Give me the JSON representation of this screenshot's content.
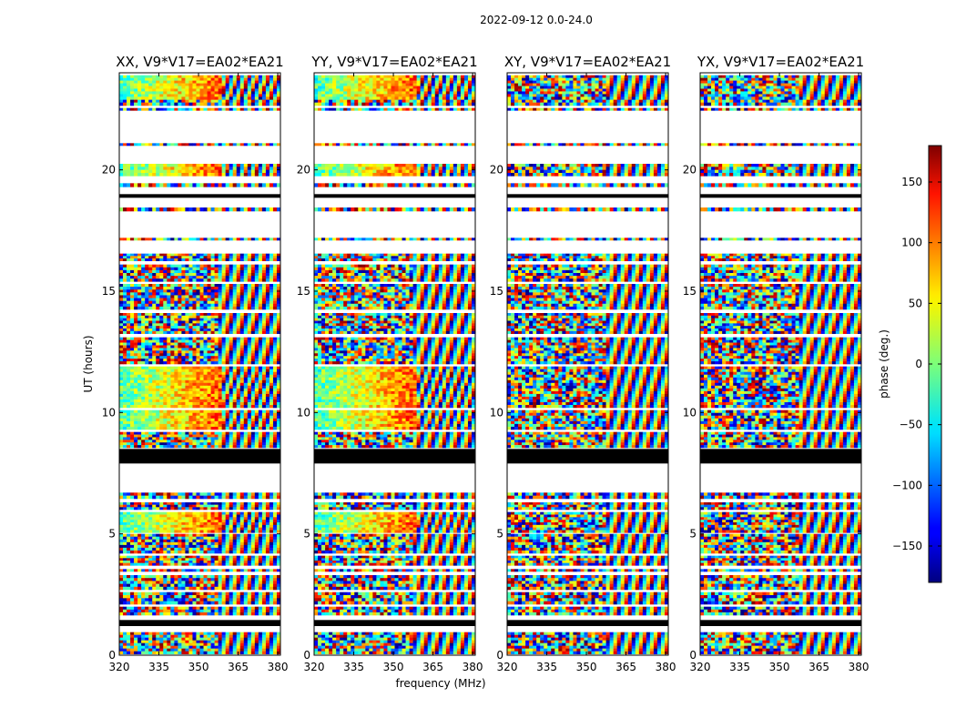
{
  "chart_data": {
    "type": "heatmap",
    "title": "2022-09-12 0.0-24.0",
    "xlabel": "frequency (MHz)",
    "ylabel": "UT (hours)",
    "xlim": [
      320,
      381
    ],
    "ylim": [
      0,
      24
    ],
    "xticks": [
      320,
      335,
      350,
      365,
      380
    ],
    "yticks": [
      0,
      5,
      10,
      15,
      20
    ],
    "panels": [
      {
        "name": "XX, V9*V17=EA02*EA21",
        "pol": "XX"
      },
      {
        "name": "YY, V9*V17=EA02*EA21",
        "pol": "YY"
      },
      {
        "name": "XY, V9*V17=EA02*EA21",
        "pol": "XY"
      },
      {
        "name": "YX, V9*V17=EA02*EA21",
        "pol": "YX"
      }
    ],
    "colorbar": {
      "label": "phase (deg.)",
      "range": [
        -180,
        180
      ],
      "ticks": [
        150,
        100,
        50,
        0,
        -50,
        -100,
        -150
      ],
      "tick_labels": [
        "150",
        "100",
        "50",
        "0",
        "−50",
        "−100",
        "−150"
      ],
      "colormap": "jet"
    },
    "data_bands_hours": [
      [
        0.05,
        0.95,
        "noise"
      ],
      [
        1.2,
        1.45,
        "flag"
      ],
      [
        1.65,
        2.0,
        "noise"
      ],
      [
        2.1,
        2.6,
        "noise"
      ],
      [
        2.7,
        3.3,
        "noise"
      ],
      [
        3.45,
        3.55,
        "noise"
      ],
      [
        3.7,
        4.1,
        "noise"
      ],
      [
        4.2,
        5.0,
        "noise"
      ],
      [
        5.05,
        5.9,
        "source"
      ],
      [
        6.0,
        6.3,
        "noise"
      ],
      [
        6.45,
        6.7,
        "noise"
      ],
      [
        7.9,
        8.5,
        "flag"
      ],
      [
        8.55,
        9.2,
        "noise"
      ],
      [
        9.3,
        10.1,
        "source"
      ],
      [
        10.2,
        11.9,
        "source"
      ],
      [
        12.0,
        13.1,
        "noise"
      ],
      [
        13.25,
        14.1,
        "noise"
      ],
      [
        14.25,
        15.3,
        "noise"
      ],
      [
        15.4,
        16.1,
        "noise"
      ],
      [
        16.25,
        16.55,
        "noise"
      ],
      [
        17.1,
        17.2,
        "noise"
      ],
      [
        18.3,
        18.45,
        "noise"
      ],
      [
        18.85,
        19.0,
        "flag"
      ],
      [
        19.3,
        19.45,
        "noise"
      ],
      [
        19.75,
        20.25,
        "source"
      ],
      [
        21.0,
        21.1,
        "noise"
      ],
      [
        22.45,
        22.55,
        "noise"
      ],
      [
        22.65,
        22.9,
        "noise"
      ],
      [
        22.9,
        23.9,
        "source"
      ]
    ]
  }
}
